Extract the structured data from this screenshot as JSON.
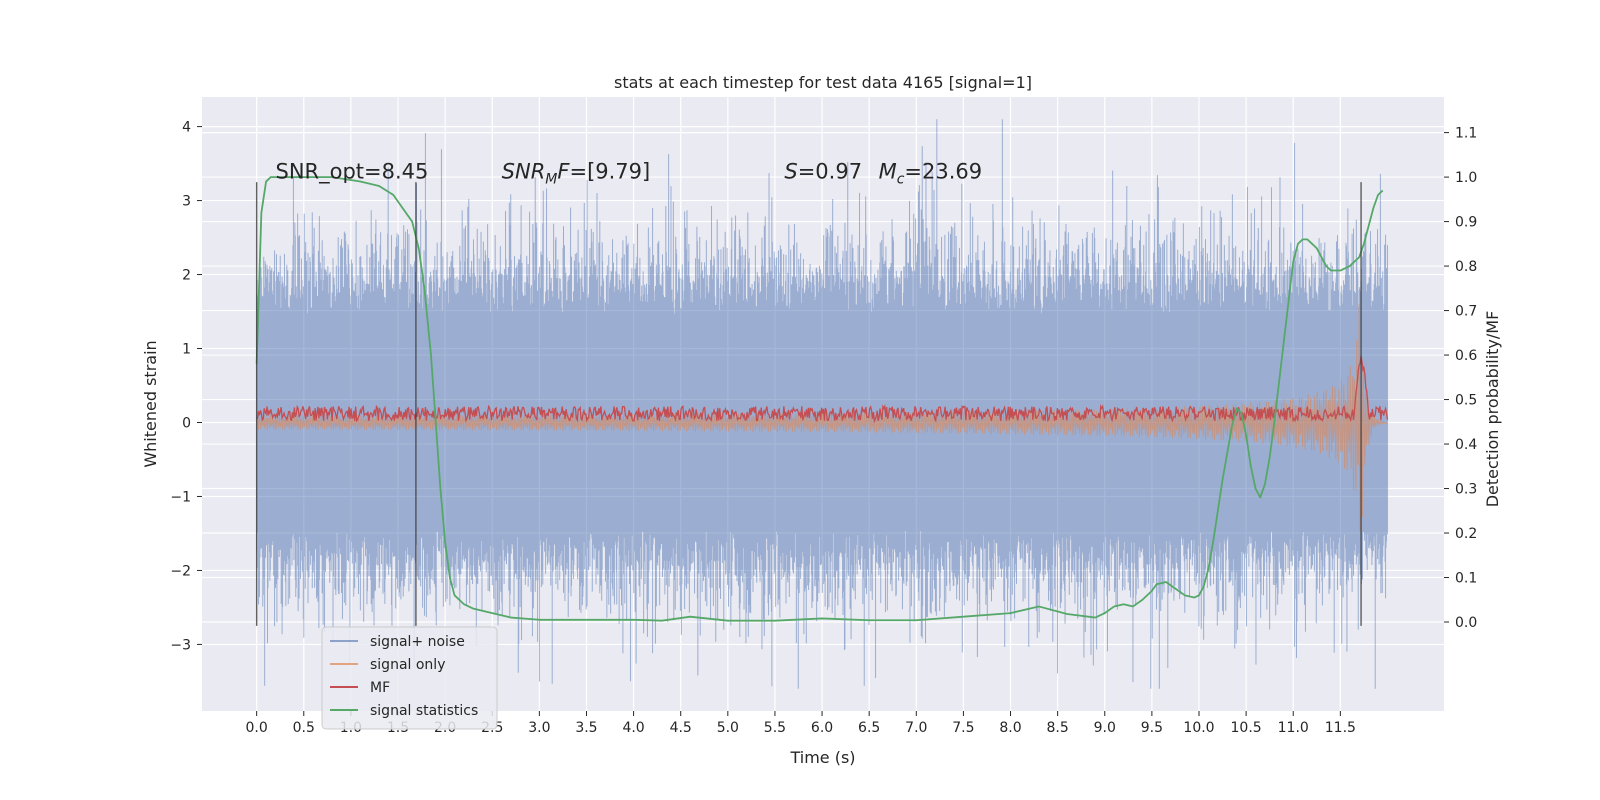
{
  "chart_data": {
    "type": "line",
    "title": "stats at each timestep for test data 4165 [signal=1]",
    "xlabel": "Time (s)",
    "ylabel": "Whitened strain",
    "y2label": "Detection probability/MF",
    "xlim": [
      -0.58,
      12.6
    ],
    "ylim": [
      -3.9,
      4.4
    ],
    "y2lim": [
      -0.2,
      1.18
    ],
    "x_ticks": [
      0.0,
      0.5,
      1.0,
      1.5,
      2.0,
      2.5,
      3.0,
      3.5,
      4.0,
      4.5,
      5.0,
      5.5,
      6.0,
      6.5,
      7.0,
      7.5,
      8.0,
      8.5,
      9.0,
      9.5,
      10.0,
      10.5,
      11.0,
      11.5
    ],
    "x_tick_labels": [
      "0.0",
      "0.5",
      "1.0",
      "1.5",
      "2.0",
      "2.5",
      "3.0",
      "3.5",
      "4.0",
      "4.5",
      "5.0",
      "5.5",
      "6.0",
      "6.5",
      "7.0",
      "7.5",
      "8.0",
      "8.5",
      "9.0",
      "9.5",
      "10.0",
      "10.5",
      "11.0",
      "11.5"
    ],
    "y_ticks": [
      -3,
      -2,
      -1,
      0,
      1,
      2,
      3,
      4
    ],
    "y_tick_labels": [
      "−3",
      "−2",
      "−1",
      "0",
      "1",
      "2",
      "3",
      "4"
    ],
    "y2_ticks": [
      0.0,
      0.1,
      0.2,
      0.3,
      0.4,
      0.5,
      0.6,
      0.7,
      0.8,
      0.9,
      1.0,
      1.1
    ],
    "y2_tick_labels": [
      "0.0",
      "0.1",
      "0.2",
      "0.3",
      "0.4",
      "0.5",
      "0.6",
      "0.7",
      "0.8",
      "0.9",
      "1.0",
      "1.1"
    ],
    "grid": true,
    "legend_position": "lower-left",
    "series": [
      {
        "name": "signal+ noise",
        "color": "#4c72b0",
        "axis": "left",
        "duration": 12.0,
        "amplitude": 1.45,
        "y_range": [
          -3.6,
          4.1
        ]
      },
      {
        "name": "signal only",
        "color": "#dd8452",
        "axis": "left",
        "duration": 12.0,
        "peak_time": 11.72,
        "peak_amplitude": 1.7
      },
      {
        "name": "MF",
        "color": "#c44e52",
        "axis": "left",
        "duration": 12.0,
        "baseline": 0.12,
        "peak_time": 11.72,
        "peak_value": 1.0
      },
      {
        "name": "signal statistics",
        "color": "#55a868",
        "axis": "right",
        "x": [
          0.0,
          0.05,
          0.1,
          0.15,
          0.2,
          0.3,
          0.5,
          0.8,
          1.1,
          1.3,
          1.45,
          1.55,
          1.65,
          1.72,
          1.78,
          1.85,
          1.9,
          1.95,
          2.0,
          2.05,
          2.1,
          2.2,
          2.3,
          2.5,
          2.7,
          3.0,
          3.5,
          4.0,
          4.3,
          4.6,
          5.0,
          5.5,
          6.0,
          6.5,
          7.0,
          7.5,
          8.0,
          8.3,
          8.6,
          8.9,
          9.0,
          9.1,
          9.2,
          9.3,
          9.4,
          9.5,
          9.55,
          9.65,
          9.75,
          9.85,
          9.95,
          10.0,
          10.05,
          10.1,
          10.15,
          10.2,
          10.25,
          10.3,
          10.35,
          10.4,
          10.45,
          10.5,
          10.55,
          10.6,
          10.65,
          10.7,
          10.75,
          10.8,
          10.85,
          10.9,
          10.95,
          11.0,
          11.05,
          11.1,
          11.15,
          11.2,
          11.25,
          11.3,
          11.35,
          11.4,
          11.5,
          11.6,
          11.7,
          11.75,
          11.8,
          11.85,
          11.9,
          11.95
        ],
        "y": [
          0.58,
          0.92,
          0.99,
          1.0,
          1.0,
          1.0,
          1.0,
          1.0,
          0.99,
          0.98,
          0.96,
          0.93,
          0.9,
          0.84,
          0.75,
          0.6,
          0.45,
          0.3,
          0.18,
          0.1,
          0.06,
          0.04,
          0.03,
          0.02,
          0.01,
          0.005,
          0.005,
          0.005,
          0.003,
          0.012,
          0.003,
          0.003,
          0.008,
          0.004,
          0.004,
          0.012,
          0.02,
          0.035,
          0.018,
          0.01,
          0.02,
          0.035,
          0.04,
          0.035,
          0.05,
          0.07,
          0.085,
          0.09,
          0.075,
          0.06,
          0.055,
          0.06,
          0.08,
          0.12,
          0.18,
          0.25,
          0.32,
          0.38,
          0.44,
          0.48,
          0.47,
          0.42,
          0.35,
          0.3,
          0.28,
          0.31,
          0.37,
          0.45,
          0.54,
          0.63,
          0.72,
          0.81,
          0.85,
          0.86,
          0.86,
          0.85,
          0.84,
          0.82,
          0.8,
          0.79,
          0.79,
          0.8,
          0.82,
          0.85,
          0.89,
          0.93,
          0.96,
          0.97
        ]
      }
    ],
    "vertical_lines": [
      {
        "x": 0.0,
        "y_from": -2.75,
        "y_to": 3.25
      },
      {
        "x": 1.69,
        "y_from": -2.75,
        "y_to": 3.25
      },
      {
        "x": 11.72,
        "y_from": -2.75,
        "y_to": 3.25
      }
    ],
    "annotations": [
      {
        "id": "snr-opt",
        "text": "SNR_opt=8.45",
        "x": 0.2,
        "y": 3.3
      },
      {
        "id": "snr-mf",
        "text": "=[9.79]",
        "math_main": "SNR",
        "math_sub": "M",
        "math_after": "F",
        "x": 2.6,
        "y": 3.3
      },
      {
        "id": "s-value",
        "text": "=0.97",
        "math_main": "S",
        "x": 5.6,
        "y": 3.3
      },
      {
        "id": "mc-value",
        "text": "=23.69",
        "math_main": "M",
        "math_sub": "c",
        "x": 6.6,
        "y": 3.3
      }
    ]
  }
}
